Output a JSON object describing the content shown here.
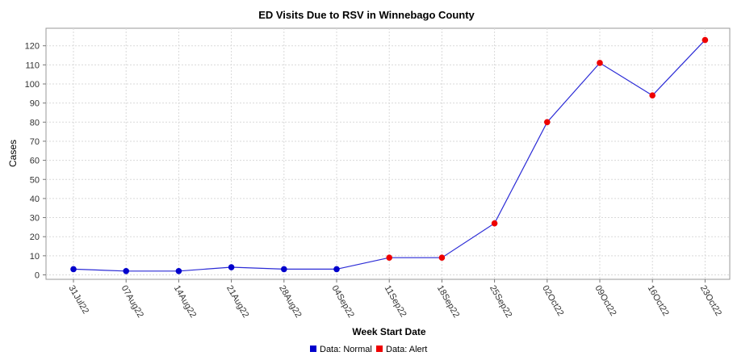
{
  "chart_data": {
    "type": "line",
    "title": "ED Visits Due to RSV in Winnebago County",
    "xlabel": "Week Start Date",
    "ylabel": "Cases",
    "ylim": [
      0,
      125
    ],
    "yticks": [
      0,
      10,
      20,
      30,
      40,
      50,
      60,
      70,
      80,
      90,
      100,
      110,
      120
    ],
    "grid": true,
    "legend_position": "bottom",
    "categories": [
      "31Jul22",
      "07Aug22",
      "14Aug22",
      "21Aug22",
      "28Aug22",
      "04Sep22",
      "11Sep22",
      "18Sep22",
      "25Sep22",
      "02Oct22",
      "09Oct22",
      "16Oct22",
      "23Oct22"
    ],
    "values": [
      3,
      2,
      2,
      4,
      3,
      3,
      9,
      9,
      27,
      80,
      111,
      94,
      123
    ],
    "status": [
      "normal",
      "normal",
      "normal",
      "normal",
      "normal",
      "normal",
      "alert",
      "alert",
      "alert",
      "alert",
      "alert",
      "alert",
      "alert"
    ],
    "line_color": "#2b2bd6",
    "legend": [
      {
        "label": "Data: Normal",
        "color": "#0000cc"
      },
      {
        "label": "Data: Alert",
        "color": "#ee0000"
      }
    ]
  }
}
